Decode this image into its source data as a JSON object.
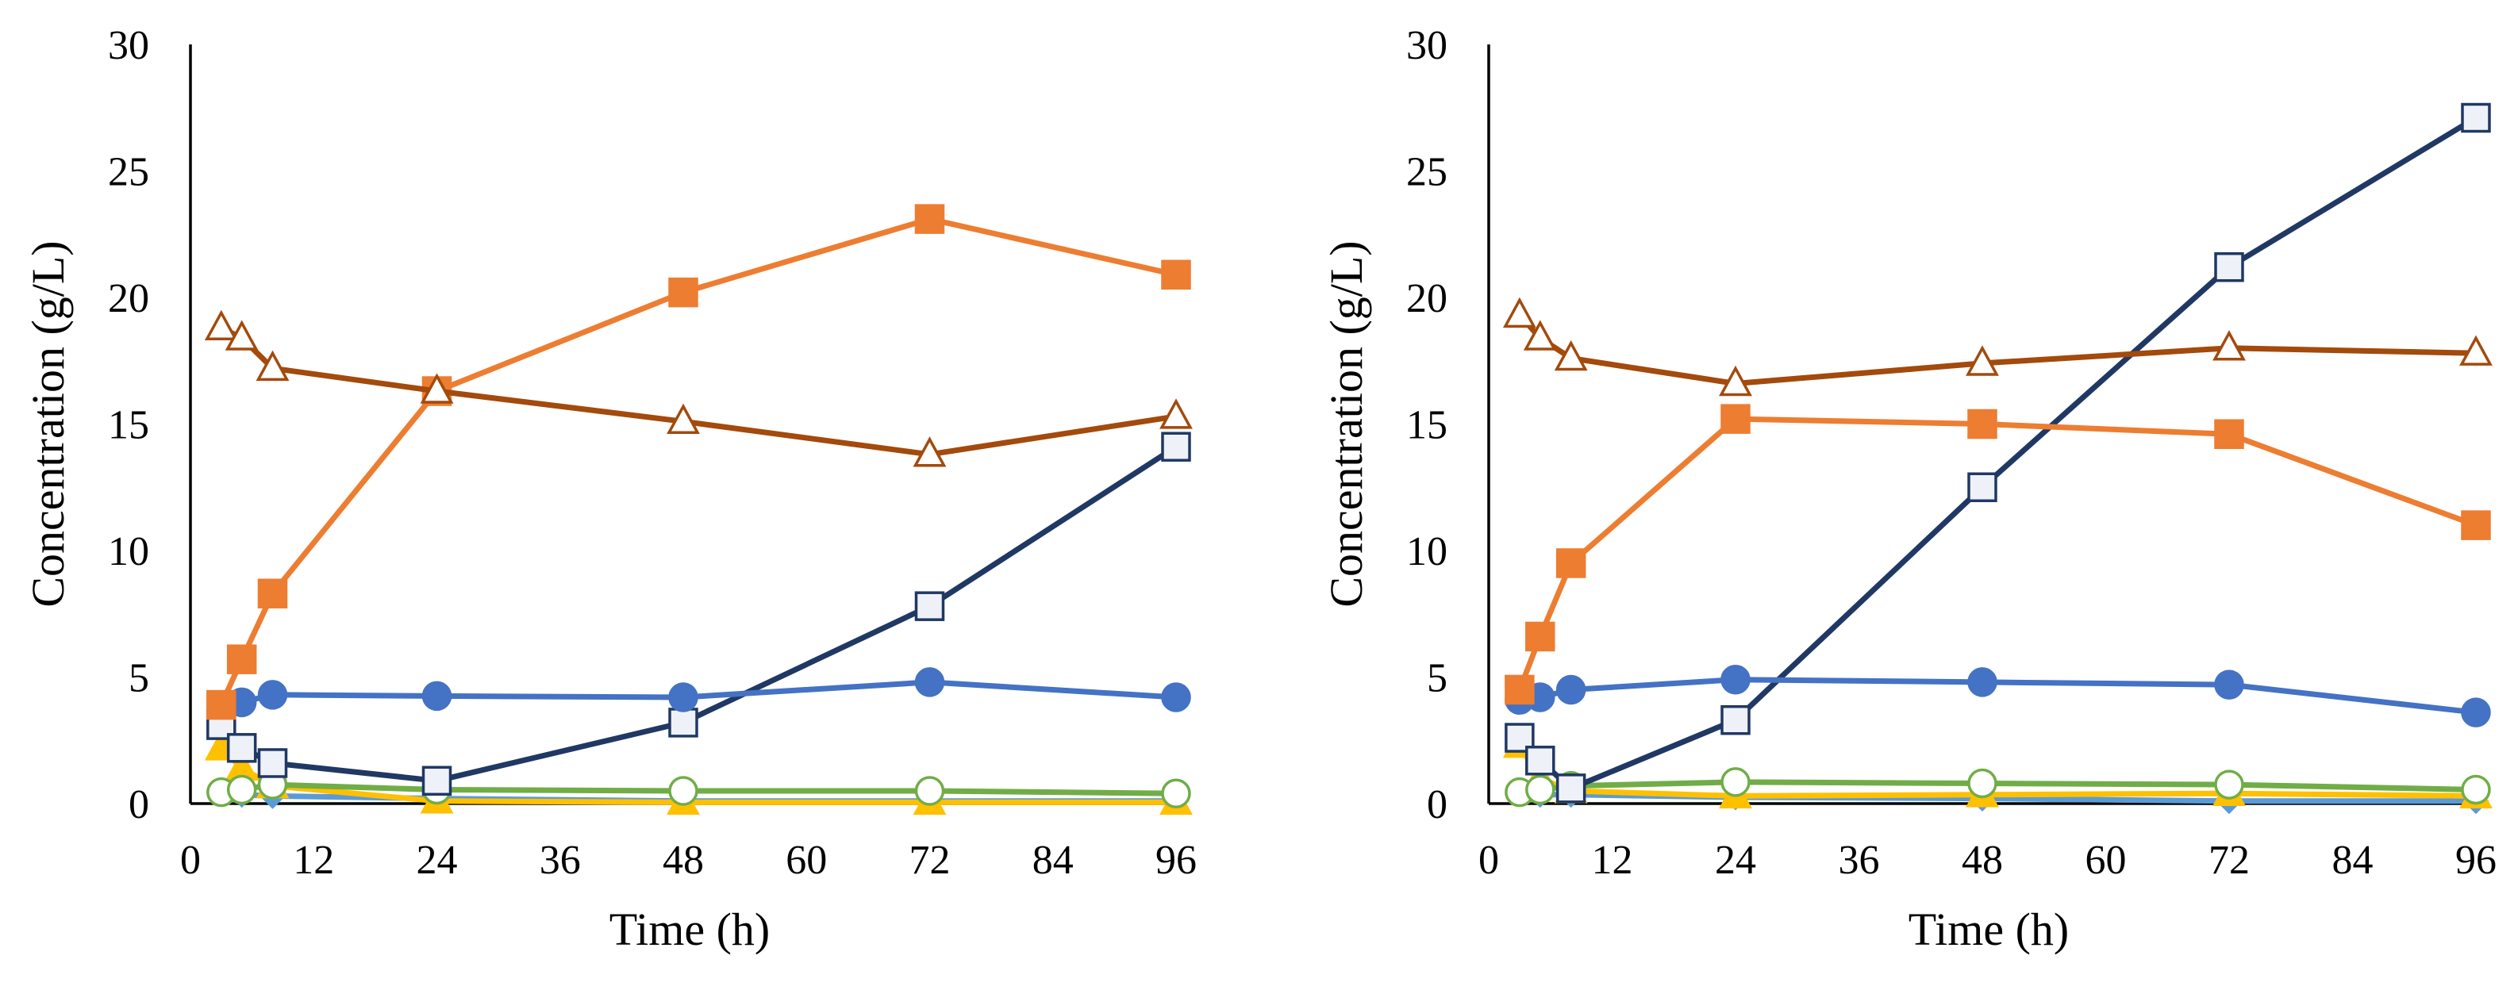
{
  "chart_data": [
    {
      "type": "line",
      "xlabel": "Time (h)",
      "ylabel": "Concentration (g/L)",
      "xlim": [
        0,
        96
      ],
      "ylim": [
        0,
        30
      ],
      "xticks": [
        "0",
        "12",
        "24",
        "36",
        "48",
        "60",
        "72",
        "84",
        "96"
      ],
      "yticks": [
        "0",
        "5",
        "10",
        "15",
        "20",
        "25",
        "30"
      ],
      "grid": false,
      "series": [
        {
          "name": "light-blue-diamond",
          "color": "#5B9BD5",
          "marker": "diamond",
          "filled": true,
          "x": [
            3,
            5,
            8,
            24,
            48,
            72,
            96
          ],
          "y": [
            0.4,
            0.35,
            0.3,
            0.2,
            0.1,
            0.1,
            0.1
          ]
        },
        {
          "name": "yellow-triangle",
          "color": "#FFC000",
          "marker": "triangle",
          "filled": true,
          "x": [
            3,
            5,
            8,
            24,
            48,
            72,
            96
          ],
          "y": [
            2.2,
            1.4,
            0.7,
            0.1,
            0.05,
            0.05,
            0.05
          ]
        },
        {
          "name": "green-circle",
          "color": "#70AD47",
          "marker": "circle",
          "filled": false,
          "x": [
            3,
            5,
            8,
            24,
            48,
            72,
            96
          ],
          "y": [
            0.45,
            0.55,
            0.75,
            0.55,
            0.5,
            0.5,
            0.4
          ]
        },
        {
          "name": "navy-square",
          "color": "#203864",
          "marker": "square",
          "filled": false,
          "x": [
            3,
            5,
            8,
            24,
            48,
            72,
            96
          ],
          "y": [
            3.1,
            2.2,
            1.6,
            0.9,
            3.2,
            7.8,
            14.1
          ]
        },
        {
          "name": "blue-circle",
          "color": "#4472C4",
          "marker": "circle",
          "filled": true,
          "x": [
            5,
            8,
            24,
            48,
            72,
            96
          ],
          "y": [
            4.0,
            4.3,
            4.25,
            4.2,
            4.8,
            4.2
          ]
        },
        {
          "name": "orange-square",
          "color": "#ED7D31",
          "marker": "square",
          "filled": true,
          "x": [
            3,
            5,
            8,
            24,
            48,
            72,
            96
          ],
          "y": [
            3.9,
            5.7,
            8.3,
            16.3,
            20.2,
            23.1,
            20.9
          ]
        },
        {
          "name": "brown-triangle",
          "color": "#A34A0C",
          "marker": "triangle",
          "filled": false,
          "x": [
            3,
            5,
            8,
            24,
            48,
            72,
            96
          ],
          "y": [
            18.8,
            18.4,
            17.2,
            16.3,
            15.1,
            13.8,
            15.3
          ]
        }
      ]
    },
    {
      "type": "line",
      "xlabel": "Time (h)",
      "ylabel": "Concentration (g/L)",
      "xlim": [
        0,
        96
      ],
      "ylim": [
        0,
        30
      ],
      "xticks": [
        "0",
        "12",
        "24",
        "36",
        "48",
        "60",
        "72",
        "84",
        "96"
      ],
      "yticks": [
        "0",
        "5",
        "10",
        "15",
        "20",
        "25",
        "30"
      ],
      "grid": false,
      "series": [
        {
          "name": "light-blue-diamond",
          "color": "#5B9BD5",
          "marker": "diamond",
          "filled": true,
          "x": [
            3,
            5,
            8,
            24,
            48,
            72,
            96
          ],
          "y": [
            0.4,
            0.35,
            0.35,
            0.25,
            0.2,
            0.1,
            0.1
          ]
        },
        {
          "name": "yellow-triangle",
          "color": "#FFC000",
          "marker": "triangle",
          "filled": true,
          "x": [
            3,
            5,
            8,
            24,
            48,
            72,
            96
          ],
          "y": [
            2.3,
            1.0,
            0.5,
            0.3,
            0.35,
            0.4,
            0.3
          ]
        },
        {
          "name": "green-circle",
          "color": "#70AD47",
          "marker": "circle",
          "filled": false,
          "x": [
            3,
            5,
            8,
            24,
            48,
            72,
            96
          ],
          "y": [
            0.45,
            0.55,
            0.7,
            0.85,
            0.8,
            0.75,
            0.55
          ]
        },
        {
          "name": "navy-square",
          "color": "#203864",
          "marker": "square",
          "filled": false,
          "x": [
            3,
            5,
            8,
            24,
            48,
            72,
            96
          ],
          "y": [
            2.6,
            1.7,
            0.6,
            3.3,
            12.5,
            21.2,
            27.1
          ]
        },
        {
          "name": "blue-circle",
          "color": "#4472C4",
          "marker": "circle",
          "filled": true,
          "x": [
            3,
            5,
            8,
            24,
            48,
            72,
            96
          ],
          "y": [
            4.1,
            4.2,
            4.5,
            4.9,
            4.8,
            4.7,
            3.6
          ]
        },
        {
          "name": "orange-square",
          "color": "#ED7D31",
          "marker": "square",
          "filled": true,
          "x": [
            3,
            5,
            8,
            24,
            48,
            72,
            96
          ],
          "y": [
            4.5,
            6.6,
            9.5,
            15.2,
            15.0,
            14.6,
            11.0
          ]
        },
        {
          "name": "brown-triangle",
          "color": "#A34A0C",
          "marker": "triangle",
          "filled": false,
          "x": [
            3,
            5,
            8,
            24,
            48,
            72,
            96
          ],
          "y": [
            19.3,
            18.4,
            17.6,
            16.6,
            17.4,
            18.0,
            17.8
          ]
        }
      ]
    }
  ]
}
